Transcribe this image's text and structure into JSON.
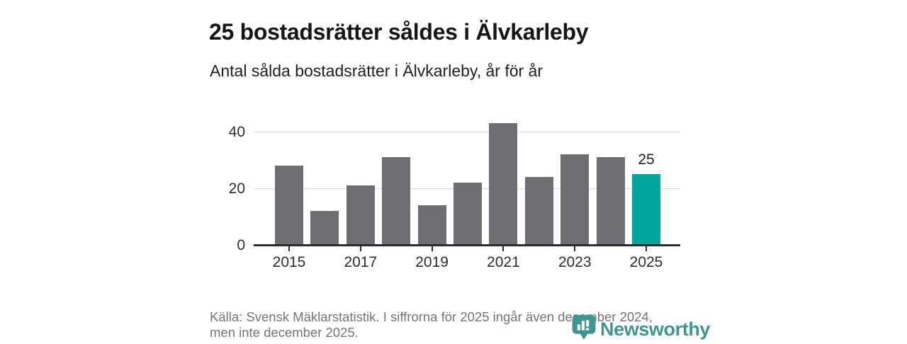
{
  "header": {
    "title": "25 bostadsrätter såldes i Älvkarleby",
    "subtitle": "Antal sålda bostadsrätter i Älvkarleby, år för år"
  },
  "chart_data": {
    "type": "bar",
    "title": "25 bostadsrätter såldes i Älvkarleby",
    "subtitle": "Antal sålda bostadsrätter i Älvkarleby, år för år",
    "categories": [
      2015,
      2016,
      2017,
      2018,
      2019,
      2020,
      2021,
      2022,
      2023,
      2024,
      2025
    ],
    "values": [
      28,
      12,
      21,
      31,
      14,
      22,
      43,
      24,
      32,
      31,
      25
    ],
    "highlight_index": 10,
    "value_label": {
      "index": 10,
      "text": "25"
    },
    "yticks": [
      0,
      20,
      40
    ],
    "xtick_years": [
      2015,
      2017,
      2019,
      2021,
      2023,
      2025
    ],
    "ylim": [
      0,
      45
    ],
    "grid": "horizontal",
    "legend": "none",
    "bar_color": "#6e6e72",
    "highlight_color": "#00a79a"
  },
  "footer": {
    "line1": "Källa: Svensk Mäklarstatistik. I siffrorna för 2025 ingår även december 2024,",
    "line2": "men inte december 2025."
  },
  "logo": {
    "text": "Newsworthy",
    "icon": "newsworthy-pin-bar-chart-icon",
    "color": "#3f958f"
  },
  "colors": {
    "background": "#ffffff",
    "title_text": "#161616",
    "axis": "#2b2b2b",
    "grid": "#dcdcdc",
    "footer_text": "#757575"
  }
}
